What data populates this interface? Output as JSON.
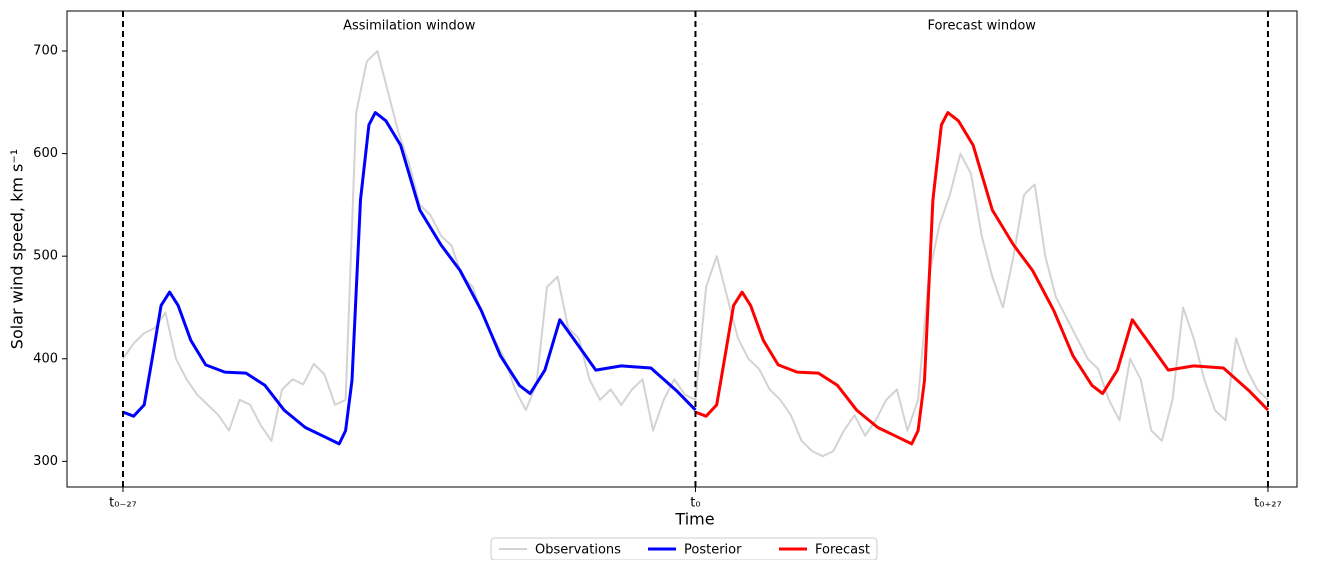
{
  "chart_data": {
    "type": "line",
    "xlabel": "Time",
    "ylabel": "Solar wind speed, km s⁻¹",
    "annotations": [
      {
        "text": "Assimilation window",
        "x": -13.5
      },
      {
        "text": "Forecast window",
        "x": 13.5
      }
    ],
    "vlines": [
      -27,
      0,
      27
    ],
    "xlim": [
      -29.64,
      28.37
    ],
    "ylim": [
      275,
      739
    ],
    "xticks": [
      {
        "value": -27,
        "label": "t₀₋₂₇"
      },
      {
        "value": 0,
        "label": "t₀"
      },
      {
        "value": 27,
        "label": "t₀₊₂₇"
      }
    ],
    "yticks": [
      300,
      400,
      500,
      600,
      700
    ],
    "legend": "bottom",
    "series": [
      {
        "name": "Observations",
        "color": "#d3d3d3",
        "x": [
          -27,
          -26.5,
          -26,
          -25.5,
          -25,
          -24.5,
          -24,
          -23.5,
          -23,
          -22.5,
          -22,
          -21.5,
          -21,
          -20.5,
          -20,
          -19.5,
          -19,
          -18.5,
          -18,
          -17.5,
          -17,
          -16.5,
          -16,
          -15.5,
          -15,
          -14.5,
          -14,
          -13.5,
          -13,
          -12.5,
          -12,
          -11.5,
          -11,
          -10.5,
          -10,
          -9.5,
          -9,
          -8.5,
          -8,
          -7.5,
          -7,
          -6.5,
          -6,
          -5.5,
          -5,
          -4.5,
          -4,
          -3.5,
          -3,
          -2.5,
          -2,
          -1.5,
          -1,
          -0.5,
          0,
          0.5,
          1,
          1.5,
          2,
          2.5,
          3,
          3.5,
          4,
          4.5,
          5,
          5.5,
          6,
          6.5,
          7,
          7.5,
          8,
          8.5,
          9,
          9.5,
          10,
          10.5,
          11,
          11.5,
          12,
          12.5,
          13,
          13.5,
          14,
          14.5,
          15,
          15.5,
          16,
          16.5,
          17,
          17.5,
          18,
          18.5,
          19,
          19.5,
          20,
          20.5,
          21,
          21.5,
          22,
          22.5,
          23,
          23.5,
          24,
          24.5,
          25,
          25.5,
          26,
          26.5,
          27
        ],
        "values": [
          400,
          415,
          425,
          430,
          445,
          400,
          380,
          365,
          355,
          345,
          330,
          360,
          355,
          335,
          320,
          370,
          380,
          375,
          395,
          385,
          355,
          360,
          640,
          690,
          700,
          660,
          620,
          590,
          550,
          540,
          520,
          510,
          480,
          470,
          440,
          420,
          400,
          370,
          350,
          375,
          470,
          480,
          430,
          420,
          380,
          360,
          370,
          355,
          370,
          380,
          330,
          360,
          380,
          365,
          360,
          470,
          500,
          460,
          420,
          400,
          390,
          370,
          360,
          345,
          320,
          310,
          305,
          310,
          330,
          345,
          325,
          340,
          360,
          370,
          330,
          360,
          480,
          530,
          560,
          600,
          580,
          520,
          480,
          450,
          500,
          560,
          570,
          500,
          460,
          440,
          420,
          400,
          390,
          360,
          340,
          400,
          380,
          330,
          320,
          360,
          450,
          420,
          380,
          350,
          340,
          420,
          390,
          370,
          360
        ]
      },
      {
        "name": "Posterior",
        "color": "#0000ff",
        "x": [
          -27,
          -26.5,
          -26,
          -25.6,
          -25.2,
          -24.8,
          -24.4,
          -23.8,
          -23.1,
          -22.2,
          -21.2,
          -20.3,
          -19.4,
          -18.4,
          -17.5,
          -16.8,
          -16.5,
          -16.2,
          -15.8,
          -15.4,
          -15.1,
          -14.6,
          -13.9,
          -13,
          -12,
          -11.1,
          -10.1,
          -9.2,
          -8.3,
          -7.8,
          -7.1,
          -6.4,
          -5.7,
          -4.7,
          -3.5,
          -2.1,
          -0.9,
          0
        ],
        "values": [
          348,
          344,
          355,
          403,
          452,
          465,
          452,
          418,
          394,
          387,
          386,
          374,
          350,
          333,
          324,
          317,
          330,
          379,
          555,
          628,
          640,
          632,
          608,
          545,
          511,
          486,
          447,
          403,
          374,
          366,
          389,
          438,
          418,
          389,
          393,
          391,
          369,
          350
        ]
      },
      {
        "name": "Forecast",
        "color": "#ff0000",
        "x": [
          0,
          0.5,
          1,
          1.4,
          1.8,
          2.2,
          2.6,
          3.2,
          3.9,
          4.8,
          5.8,
          6.7,
          7.6,
          8.6,
          9.5,
          10.2,
          10.5,
          10.8,
          11.2,
          11.6,
          11.9,
          12.4,
          13.1,
          14,
          15,
          15.9,
          16.9,
          17.8,
          18.7,
          19.2,
          19.9,
          20.6,
          21.3,
          22.3,
          23.5,
          24.9,
          26.1,
          27
        ],
        "values": [
          348,
          344,
          355,
          403,
          452,
          465,
          452,
          418,
          394,
          387,
          386,
          374,
          350,
          333,
          324,
          317,
          330,
          379,
          555,
          628,
          640,
          632,
          608,
          545,
          511,
          486,
          447,
          403,
          374,
          366,
          389,
          438,
          418,
          389,
          393,
          391,
          369,
          350
        ]
      }
    ]
  }
}
